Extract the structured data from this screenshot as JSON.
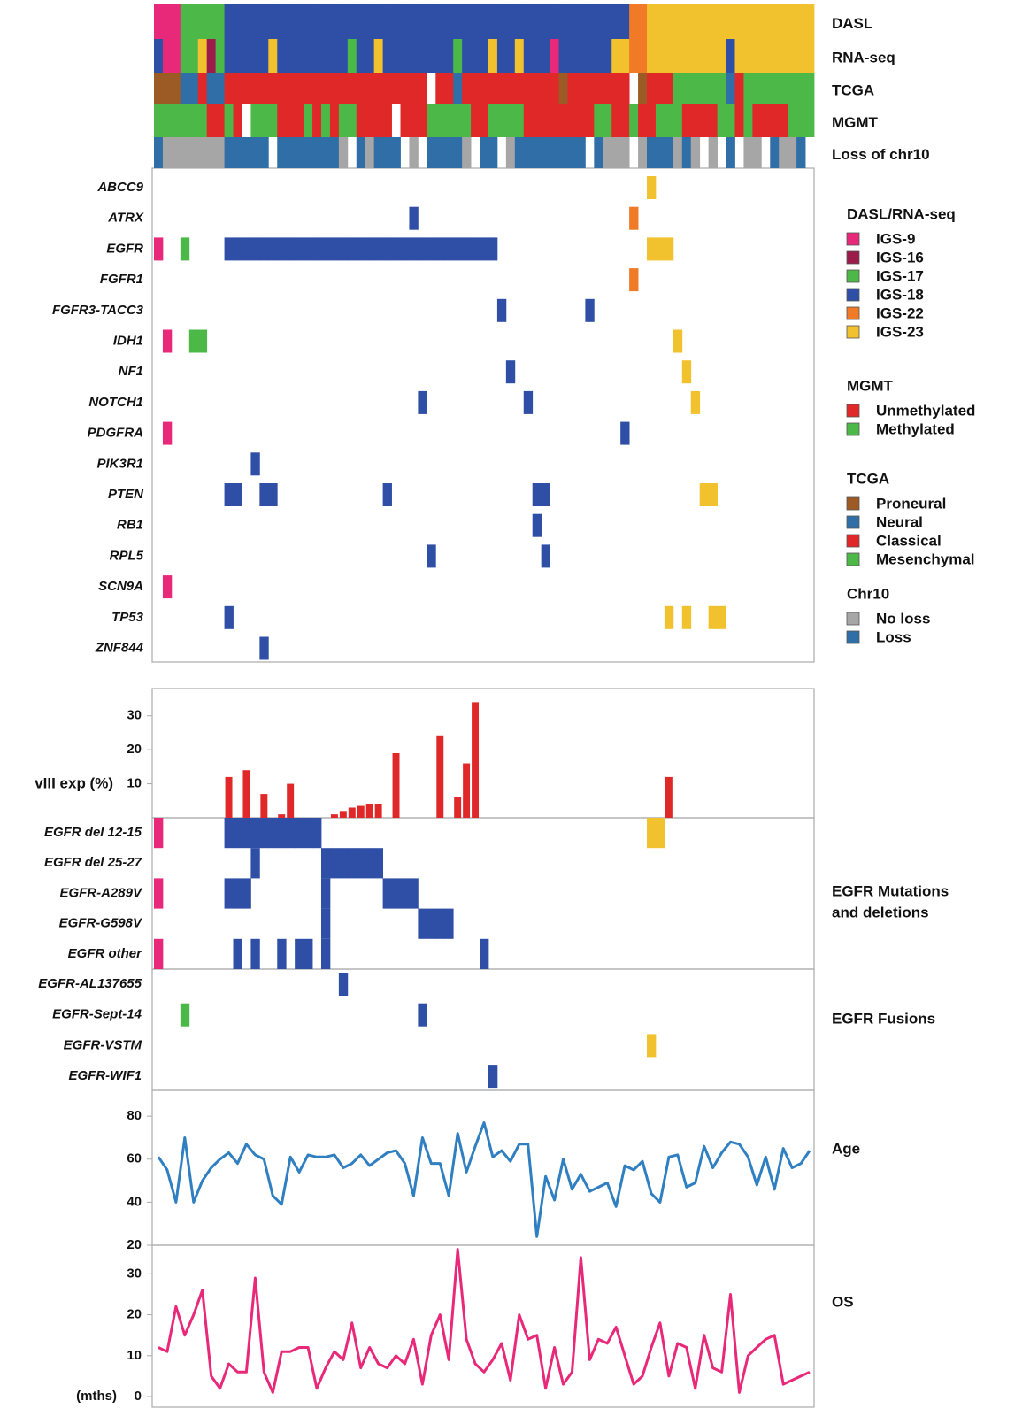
{
  "chart_data": {
    "type": "oncoprint",
    "tracks": [
      {
        "name": "DASL",
        "values": [
          "IGS-9",
          "IGS-9",
          "IGS-9",
          "IGS-17",
          "IGS-17",
          "IGS-17",
          "IGS-17",
          "IGS-17",
          "IGS-18",
          "IGS-18",
          "IGS-18",
          "IGS-18",
          "IGS-18",
          "IGS-18",
          "IGS-18",
          "IGS-18",
          "IGS-18",
          "IGS-18",
          "IGS-18",
          "IGS-18",
          "IGS-18",
          "IGS-18",
          "IGS-18",
          "IGS-18",
          "IGS-18",
          "IGS-18",
          "IGS-18",
          "IGS-18",
          "IGS-18",
          "IGS-18",
          "IGS-18",
          "IGS-18",
          "IGS-18",
          "IGS-18",
          "IGS-18",
          "IGS-18",
          "IGS-18",
          "IGS-18",
          "IGS-18",
          "IGS-18",
          "IGS-18",
          "IGS-18",
          "IGS-18",
          "IGS-18",
          "IGS-18",
          "IGS-18",
          "IGS-18",
          "IGS-18",
          "IGS-18",
          "IGS-18",
          "IGS-18",
          "IGS-18",
          "IGS-18",
          "IGS-18",
          "IGS-22",
          "IGS-22",
          "IGS-23",
          "IGS-23",
          "IGS-23",
          "IGS-23",
          "IGS-23",
          "IGS-23",
          "IGS-23",
          "IGS-23",
          "IGS-23",
          "IGS-23",
          "IGS-23",
          "IGS-23",
          "IGS-23",
          "IGS-23",
          "IGS-23",
          "IGS-23",
          "IGS-23",
          "IGS-23",
          "IGS-23"
        ]
      },
      {
        "name": "RNA-seq",
        "values": [
          "IGS-18",
          "IGS-9",
          "IGS-9",
          "IGS-17",
          "IGS-17",
          "IGS-23",
          "IGS-16",
          "IGS-17",
          "IGS-18",
          "IGS-18",
          "IGS-18",
          "IGS-18",
          "IGS-18",
          "IGS-23",
          "IGS-18",
          "IGS-18",
          "IGS-18",
          "IGS-18",
          "IGS-18",
          "IGS-18",
          "IGS-18",
          "IGS-18",
          "IGS-17",
          "IGS-18",
          "IGS-18",
          "IGS-23",
          "IGS-18",
          "IGS-18",
          "IGS-18",
          "IGS-18",
          "IGS-18",
          "IGS-18",
          "IGS-18",
          "IGS-18",
          "IGS-17",
          "IGS-18",
          "IGS-18",
          "IGS-18",
          "IGS-23",
          "IGS-18",
          "IGS-18",
          "IGS-23",
          "IGS-18",
          "IGS-18",
          "IGS-18",
          "IGS-9",
          "IGS-18",
          "IGS-18",
          "IGS-18",
          "IGS-18",
          "IGS-18",
          "IGS-18",
          "IGS-23",
          "IGS-23",
          "IGS-22",
          "IGS-22",
          "IGS-23",
          "IGS-23",
          "IGS-23",
          "IGS-23",
          "IGS-23",
          "IGS-23",
          "IGS-23",
          "IGS-23",
          "IGS-23",
          "IGS-18",
          "IGS-23",
          "IGS-23",
          "IGS-23",
          "IGS-23",
          "IGS-23",
          "IGS-23",
          "IGS-23",
          "IGS-23",
          "IGS-23"
        ]
      },
      {
        "name": "TCGA",
        "values": [
          "Proneural",
          "Proneural",
          "Proneural",
          "Neural",
          "Neural",
          "Classical",
          "Neural",
          "Neural",
          "Classical",
          "Classical",
          "Classical",
          "Classical",
          "Classical",
          "Classical",
          "Classical",
          "Classical",
          "Classical",
          "Classical",
          "Classical",
          "Classical",
          "Classical",
          "Classical",
          "Classical",
          "Classical",
          "Classical",
          "Classical",
          "Classical",
          "Classical",
          "Classical",
          "Classical",
          "Classical",
          null,
          "Classical",
          "Classical",
          "Neural",
          "Classical",
          "Classical",
          "Classical",
          "Classical",
          "Classical",
          "Classical",
          "Classical",
          "Classical",
          "Classical",
          "Classical",
          "Classical",
          "Proneural",
          "Classical",
          "Classical",
          "Classical",
          "Classical",
          "Classical",
          "Classical",
          "Classical",
          null,
          "Proneural",
          "Classical",
          "Classical",
          "Classical",
          "Mesenchymal",
          "Mesenchymal",
          "Mesenchymal",
          "Mesenchymal",
          "Mesenchymal",
          "Mesenchymal",
          "Neural",
          "Classical",
          "Mesenchymal",
          "Mesenchymal",
          "Mesenchymal",
          "Mesenchymal",
          "Mesenchymal",
          "Mesenchymal",
          "Mesenchymal",
          "Mesenchymal"
        ]
      },
      {
        "name": "MGMT",
        "values": [
          "Methylated",
          "Methylated",
          "Methylated",
          "Methylated",
          "Methylated",
          "Methylated",
          "Unmethylated",
          "Unmethylated",
          "Methylated",
          "Unmethylated",
          null,
          "Methylated",
          "Methylated",
          "Methylated",
          "Unmethylated",
          "Unmethylated",
          "Unmethylated",
          "Methylated",
          "Unmethylated",
          "Methylated",
          "Unmethylated",
          "Methylated",
          "Methylated",
          "Unmethylated",
          "Unmethylated",
          "Unmethylated",
          "Unmethylated",
          null,
          "Unmethylated",
          "Unmethylated",
          "Unmethylated",
          "Methylated",
          "Methylated",
          "Methylated",
          "Methylated",
          "Methylated",
          "Unmethylated",
          "Unmethylated",
          "Methylated",
          "Methylated",
          "Methylated",
          "Methylated",
          "Unmethylated",
          "Unmethylated",
          "Unmethylated",
          "Unmethylated",
          "Unmethylated",
          "Unmethylated",
          "Unmethylated",
          "Unmethylated",
          "Methylated",
          "Methylated",
          "Unmethylated",
          "Unmethylated",
          "Methylated",
          "Unmethylated",
          "Unmethylated",
          "Methylated",
          "Methylated",
          "Methylated",
          "Unmethylated",
          "Unmethylated",
          "Unmethylated",
          "Unmethylated",
          "Methylated",
          "Methylated",
          "Unmethylated",
          "Methylated",
          "Unmethylated",
          "Unmethylated",
          "Unmethylated",
          "Unmethylated",
          "Methylated",
          "Methylated",
          "Methylated"
        ]
      },
      {
        "name": "Loss of chr10",
        "values": [
          "Loss",
          "No loss",
          "No loss",
          "No loss",
          "No loss",
          "No loss",
          "No loss",
          "No loss",
          "Loss",
          "Loss",
          "Loss",
          "Loss",
          "Loss",
          null,
          "Loss",
          "Loss",
          "Loss",
          "Loss",
          "Loss",
          "Loss",
          "Loss",
          "No loss",
          null,
          "Loss",
          "No loss",
          "Loss",
          "Loss",
          "Loss",
          null,
          "No loss",
          null,
          "Loss",
          "Loss",
          "Loss",
          "Loss",
          "No loss",
          null,
          "Loss",
          "Loss",
          null,
          "No loss",
          "Loss",
          "Loss",
          "Loss",
          "Loss",
          "Loss",
          "Loss",
          "Loss",
          "Loss",
          null,
          "Loss",
          "No loss",
          "No loss",
          "No loss",
          null,
          "No loss",
          "Loss",
          "Loss",
          "Loss",
          "No loss",
          "Loss",
          "No loss",
          null,
          "No loss",
          null,
          "Loss",
          null,
          "No loss",
          "No loss",
          null,
          "Loss",
          "No loss",
          "No loss",
          "Loss",
          null
        ]
      }
    ],
    "legends": [
      {
        "title": "DASL/RNA-seq",
        "items": [
          {
            "label": "IGS-9",
            "color": "#e8297a"
          },
          {
            "label": "IGS-16",
            "color": "#9b1b4a"
          },
          {
            "label": "IGS-17",
            "color": "#4cb848"
          },
          {
            "label": "IGS-18",
            "color": "#2f4fa6"
          },
          {
            "label": "IGS-22",
            "color": "#f07a26"
          },
          {
            "label": "IGS-23",
            "color": "#f2c22e"
          }
        ]
      },
      {
        "title": "MGMT",
        "items": [
          {
            "label": "Unmethylated",
            "color": "#e02828"
          },
          {
            "label": "Methylated",
            "color": "#4cb848"
          }
        ]
      },
      {
        "title": "TCGA",
        "items": [
          {
            "label": "Proneural",
            "color": "#9c5a24"
          },
          {
            "label": "Neural",
            "color": "#2f6ea6"
          },
          {
            "label": "Classical",
            "color": "#e02828"
          },
          {
            "label": "Mesenchymal",
            "color": "#4cb848"
          }
        ]
      },
      {
        "title": "Chr10",
        "items": [
          {
            "label": "No loss",
            "color": "#a6a6a6"
          },
          {
            "label": "Loss",
            "color": "#2f6ea6"
          }
        ]
      }
    ],
    "genes": [
      {
        "name": "ABCC9",
        "samples": [
          56
        ]
      },
      {
        "name": "ATRX",
        "samples": [
          29,
          54
        ]
      },
      {
        "name": "EGFR",
        "samples": [
          0,
          3,
          8,
          9,
          10,
          11,
          12,
          13,
          14,
          15,
          16,
          17,
          18,
          19,
          20,
          21,
          22,
          23,
          24,
          25,
          26,
          27,
          28,
          29,
          30,
          31,
          32,
          33,
          34,
          35,
          36,
          37,
          38,
          56,
          57,
          58
        ]
      },
      {
        "name": "FGFR1",
        "samples": [
          54
        ]
      },
      {
        "name": "FGFR3-TACC3",
        "samples": [
          39,
          49
        ]
      },
      {
        "name": "IDH1",
        "samples": [
          1,
          4,
          5,
          59
        ]
      },
      {
        "name": "NF1",
        "samples": [
          40,
          60
        ]
      },
      {
        "name": "NOTCH1",
        "samples": [
          30,
          42,
          61
        ]
      },
      {
        "name": "PDGFRA",
        "samples": [
          1,
          53
        ]
      },
      {
        "name": "PIK3R1",
        "samples": [
          11
        ]
      },
      {
        "name": "PTEN",
        "samples": [
          8,
          9,
          12,
          13,
          26,
          43,
          44,
          62,
          63
        ]
      },
      {
        "name": "RB1",
        "samples": [
          43
        ]
      },
      {
        "name": "RPL5",
        "samples": [
          31,
          44
        ]
      },
      {
        "name": "SCN9A",
        "samples": [
          1
        ]
      },
      {
        "name": "TP53",
        "samples": [
          8,
          58,
          60,
          63,
          64
        ]
      },
      {
        "name": "ZNF844",
        "samples": [
          12
        ]
      }
    ],
    "viii": {
      "label": "vIII exp (%)",
      "color": "#e02828",
      "ylim": [
        0,
        38
      ],
      "yticks": [
        10,
        20,
        30
      ],
      "values": [
        null,
        null,
        null,
        null,
        null,
        null,
        null,
        null,
        12,
        null,
        14,
        null,
        7,
        null,
        1,
        10,
        null,
        null,
        null,
        null,
        1,
        2,
        3,
        3.5,
        4,
        4,
        null,
        19,
        null,
        null,
        null,
        null,
        24,
        null,
        6,
        16,
        34,
        null,
        null,
        null,
        null,
        null,
        null,
        null,
        null,
        null,
        null,
        null,
        null,
        null,
        null,
        null,
        null,
        null,
        null,
        null,
        null,
        null,
        12,
        null,
        null,
        null,
        null,
        null,
        null,
        null,
        null,
        null,
        null,
        null,
        null,
        null,
        null,
        null,
        null
      ]
    },
    "egfr_mutations": {
      "label": [
        "EGFR Mutations",
        "and deletions"
      ],
      "rows": [
        {
          "name": "EGFR del 12-15",
          "samples": [
            0,
            8,
            9,
            10,
            11,
            12,
            13,
            14,
            15,
            16,
            17,
            18,
            56,
            57
          ]
        },
        {
          "name": "EGFR del 25-27",
          "samples": [
            11,
            19,
            20,
            21,
            22,
            23,
            24,
            25
          ]
        },
        {
          "name": "EGFR-A289V",
          "samples": [
            0,
            8,
            9,
            10,
            19,
            26,
            27,
            28,
            29
          ]
        },
        {
          "name": "EGFR-G598V",
          "samples": [
            19,
            30,
            31,
            32,
            33
          ]
        },
        {
          "name": "EGFR other",
          "samples": [
            0,
            9,
            11,
            14,
            16,
            17,
            19,
            37
          ]
        }
      ]
    },
    "egfr_fusions": {
      "label": "EGFR Fusions",
      "rows": [
        {
          "name": "EGFR-AL137655",
          "samples": [
            21
          ]
        },
        {
          "name": "EGFR-Sept-14",
          "samples": [
            3,
            30
          ]
        },
        {
          "name": "EGFR-VSTM",
          "samples": [
            56
          ]
        },
        {
          "name": "EGFR-WIF1",
          "samples": [
            38
          ]
        }
      ]
    },
    "age": {
      "label": "Age",
      "color": "#2f7fc1",
      "ylim": [
        20,
        92
      ],
      "yticks": [
        20,
        40,
        60,
        80
      ],
      "values": [
        61,
        55,
        40,
        70,
        40,
        50,
        56,
        60,
        63,
        58,
        67,
        62,
        60,
        43,
        39,
        61,
        54,
        62,
        61,
        61,
        62,
        56,
        58,
        62,
        57,
        60,
        63,
        64,
        58,
        43,
        70,
        58,
        58,
        43,
        72,
        54,
        66,
        77,
        61,
        64,
        59,
        67,
        67,
        24,
        52,
        41,
        60,
        46,
        53,
        45,
        47,
        49,
        38,
        57,
        55,
        59,
        44,
        40,
        61,
        62,
        47,
        49,
        66,
        56,
        63,
        68,
        67,
        61,
        48,
        61,
        46,
        65,
        56,
        58,
        64
      ]
    },
    "os": {
      "label": "OS",
      "axis_label": "(mths)",
      "color": "#e8297a",
      "ylim": [
        0,
        37
      ],
      "yticks": [
        0,
        10,
        20,
        30
      ],
      "values": [
        12,
        11,
        22,
        15,
        20,
        26,
        5,
        2,
        8,
        6,
        6,
        29,
        6,
        1,
        11,
        11,
        12,
        12,
        2,
        7,
        11,
        9,
        18,
        7,
        12,
        8,
        7,
        10,
        8,
        14,
        3,
        15,
        20,
        9,
        36,
        14,
        8,
        6,
        9,
        13,
        4,
        20,
        14,
        15,
        2,
        12,
        3,
        6,
        34,
        9,
        14,
        13,
        17,
        10,
        3,
        5,
        12,
        18,
        5,
        13,
        12,
        2,
        15,
        7,
        6,
        25,
        1,
        10,
        12,
        14,
        15,
        3,
        4,
        5,
        6
      ]
    }
  }
}
